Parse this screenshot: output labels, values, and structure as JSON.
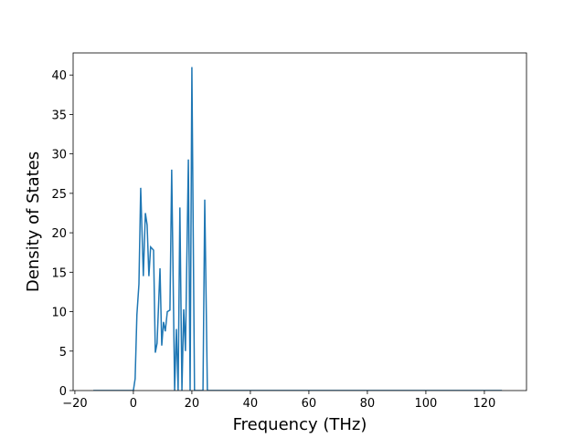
{
  "chart_data": {
    "type": "line",
    "x_label": "Frequency (THz)",
    "y_label": "Density of States",
    "x": [
      -13.7,
      0,
      0.6,
      1.2,
      1.9,
      2.5,
      3.4,
      4.1,
      4.7,
      5.3,
      5.9,
      6.9,
      7.5,
      8.1,
      9.1,
      9.7,
      10.3,
      10.9,
      11.6,
      12.5,
      13.1,
      14.1,
      14.7,
      15.3,
      15.9,
      16.6,
      17.2,
      17.8,
      18.8,
      19.4,
      20,
      20.9,
      23.8,
      24.4,
      25.3,
      126
    ],
    "values": [
      0,
      0,
      1.5,
      9.6,
      13.5,
      25.7,
      14.5,
      22.5,
      21,
      14.5,
      18.2,
      17.8,
      4.8,
      6,
      15.5,
      5.7,
      8.7,
      7.5,
      10,
      10.2,
      28,
      0,
      7.8,
      0,
      23.2,
      0,
      10.3,
      5,
      29.3,
      0,
      41,
      0,
      0,
      24.2,
      0,
      0
    ],
    "color": "#1f77b4",
    "xlim": [
      -20.6,
      134.4
    ],
    "ylim": [
      0,
      42.8
    ],
    "xticks": [
      {
        "value": -20,
        "label": "−20"
      },
      0,
      20,
      40,
      60,
      80,
      100,
      120
    ],
    "yticks": [
      0,
      5,
      10,
      15,
      20,
      25,
      30,
      35,
      40
    ]
  }
}
